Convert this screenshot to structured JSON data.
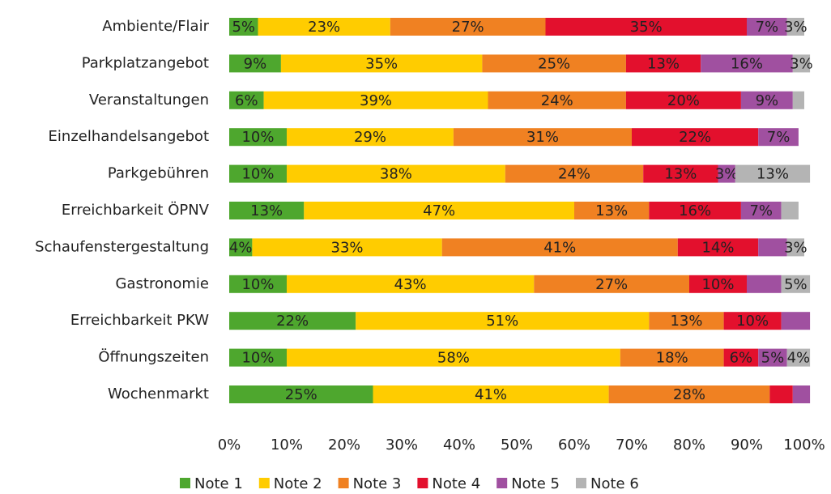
{
  "chart_data": {
    "type": "stacked_bar_horizontal",
    "categories": [
      "Ambiente/Flair",
      "Parkplatzangebot",
      "Veranstaltungen",
      "Einzelhandelsangebot",
      "Parkgebühren",
      "Erreichbarkeit ÖPNV",
      "Schaufenstergestaltung",
      "Gastronomie",
      "Erreichbarkeit PKW",
      "Öffnungszeiten",
      "Wochenmarkt"
    ],
    "series": [
      {
        "name": "Note 1",
        "color": "#4ea72e",
        "values": [
          5,
          9,
          6,
          10,
          10,
          13,
          4,
          10,
          22,
          10,
          25
        ],
        "value_labels": [
          "5%",
          "9%",
          "6%",
          "10%",
          "10%",
          "13%",
          "4%",
          "10%",
          "22%",
          "10%",
          "25%"
        ]
      },
      {
        "name": "Note 2",
        "color": "#ffcc00",
        "values": [
          23,
          35,
          39,
          29,
          38,
          47,
          33,
          43,
          51,
          58,
          41
        ],
        "value_labels": [
          "23%",
          "35%",
          "39%",
          "29%",
          "38%",
          "47%",
          "33%",
          "43%",
          "51%",
          "58%",
          "41%"
        ]
      },
      {
        "name": "Note 3",
        "color": "#f08122",
        "values": [
          27,
          25,
          24,
          31,
          24,
          13,
          41,
          27,
          13,
          18,
          28
        ],
        "value_labels": [
          "27%",
          "25%",
          "24%",
          "31%",
          "24%",
          "13%",
          "41%",
          "27%",
          "13%",
          "18%",
          "28%"
        ]
      },
      {
        "name": "Note 4",
        "color": "#e3102d",
        "values": [
          35,
          13,
          20,
          22,
          13,
          16,
          14,
          10,
          10,
          6,
          4
        ],
        "value_labels": [
          "35%",
          "13%",
          "20%",
          "22%",
          "13%",
          "16%",
          "14%",
          "10%",
          "10%",
          "6%",
          null
        ]
      },
      {
        "name": "Note 5",
        "color": "#a050a0",
        "values": [
          7,
          16,
          9,
          7,
          3,
          7,
          5,
          6,
          5,
          5,
          3
        ],
        "value_labels": [
          "7%",
          "16%",
          "9%",
          "7%",
          "3%",
          "7%",
          null,
          null,
          null,
          "5%",
          null
        ]
      },
      {
        "name": "Note 6",
        "color": "#b4b4b4",
        "values": [
          3,
          3,
          2,
          0,
          13,
          3,
          3,
          5,
          0,
          4,
          0
        ],
        "value_labels": [
          "3%",
          "3%",
          null,
          null,
          "13%",
          null,
          "3%",
          "5%",
          null,
          "4%",
          null
        ]
      }
    ],
    "xlim": [
      0,
      100
    ],
    "xticks": [
      {
        "value": 0,
        "label": "0%"
      },
      {
        "value": 10,
        "label": "10%"
      },
      {
        "value": 20,
        "label": "20%"
      },
      {
        "value": 30,
        "label": "30%"
      },
      {
        "value": 40,
        "label": "40%"
      },
      {
        "value": 50,
        "label": "50%"
      },
      {
        "value": 60,
        "label": "60%"
      },
      {
        "value": 70,
        "label": "70%"
      },
      {
        "value": 80,
        "label": "80%"
      },
      {
        "value": 90,
        "label": "90%"
      },
      {
        "value": 100,
        "label": "100%"
      }
    ],
    "legend": "bottom"
  }
}
